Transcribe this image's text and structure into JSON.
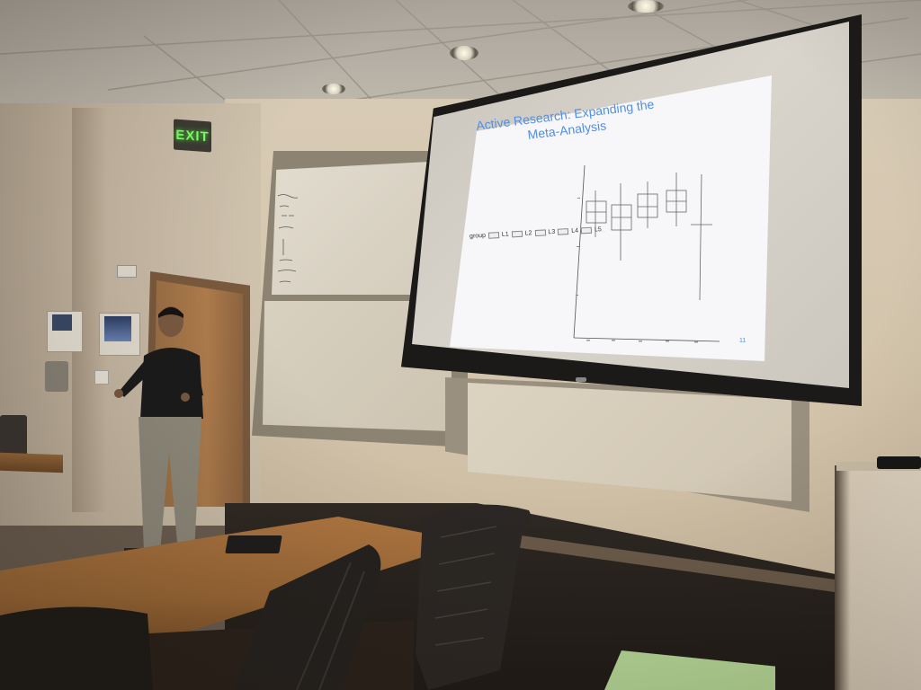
{
  "scene": {
    "exit_sign": "EXIT",
    "slide": {
      "title_line1": "Active Research: Expanding the",
      "title_line2": "Meta-Analysis",
      "legend_label": "group",
      "legend_items": [
        "L1",
        "L2",
        "L3",
        "L4",
        "L5"
      ],
      "page_number": "11"
    },
    "colors": {
      "slide_title": "#4f8fe3",
      "exit_glow": "#7dff6a",
      "wall": "#d3c4ab",
      "table": "#a86f3b"
    }
  }
}
